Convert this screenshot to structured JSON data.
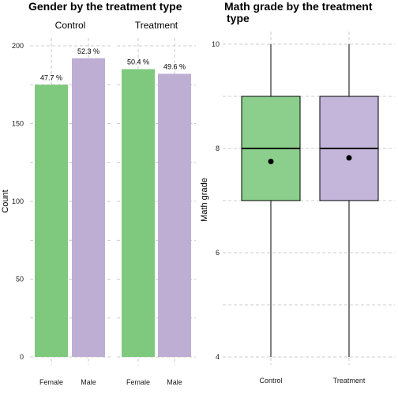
{
  "colors": {
    "female_green": "#7fc97f",
    "male_purple": "#beaed4",
    "box_green": "#8ccf8c",
    "box_purple": "#c4b5da",
    "grid": "#bdbdbd",
    "outline": "#000000"
  },
  "chart_data": [
    {
      "type": "bar",
      "title": "Gender by the treatment type",
      "xlabel": "",
      "ylabel": "Count",
      "ylim": [
        0,
        200
      ],
      "yticks": [
        "0",
        "50",
        "100",
        "150",
        "200"
      ],
      "facets": [
        {
          "strip": "Control",
          "categories": [
            "Female",
            "Male"
          ],
          "values": [
            175,
            192
          ],
          "labels": [
            "47.7 %",
            "52.3 %"
          ]
        },
        {
          "strip": "Treatment",
          "categories": [
            "Female",
            "Male"
          ],
          "values": [
            185,
            182
          ],
          "labels": [
            "50.4 %",
            "49.6 %"
          ]
        }
      ],
      "grid": true,
      "legend": "none"
    },
    {
      "type": "box",
      "title": "Math grade by the treatment type",
      "xlabel": "",
      "ylabel": "Math grade",
      "ylim": [
        4,
        10
      ],
      "yticks": [
        "4",
        "6",
        "8",
        "10"
      ],
      "categories": [
        "Control",
        "Treatment"
      ],
      "boxes": [
        {
          "min": 4,
          "q1": 7,
          "median": 8,
          "q3": 9,
          "max": 10,
          "mean": 7.75
        },
        {
          "min": 4,
          "q1": 7,
          "median": 8,
          "q3": 9,
          "max": 10,
          "mean": 7.82
        }
      ],
      "grid": true,
      "legend": "none"
    }
  ]
}
